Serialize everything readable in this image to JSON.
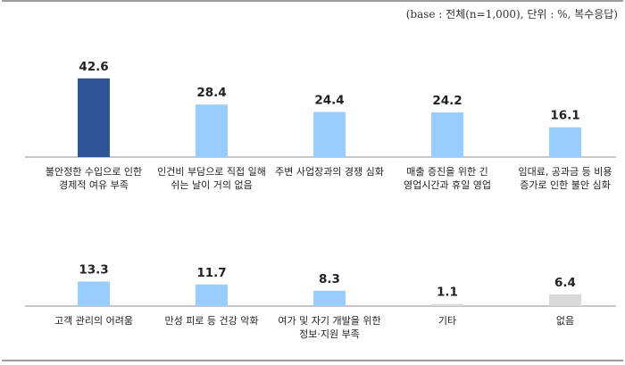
{
  "base_note": "(base : 전체(n=1,000), 단위 : %, 복수응답)",
  "colors": {
    "highlight": "#2f5597",
    "default": "#99ccff",
    "neutral": "#d9d9d9",
    "axis": "#8c8c8c",
    "frame": "#7f7f7f"
  },
  "chart_data": {
    "type": "bar",
    "title": "",
    "xlabel": "",
    "ylabel": "",
    "ylim": [
      0,
      50
    ],
    "grid": false,
    "legend": "none",
    "categories": [
      [
        "불안정한 수입으로 인한",
        "경제적 여유 부족"
      ],
      [
        "인건비 부담으로 직접 일해",
        "쉬는 날이 거의 없음"
      ],
      [
        "주변 사업장과의 경쟁 심화"
      ],
      [
        "매출 증진을 위한 긴",
        "영업시간과 휴일 영업"
      ],
      [
        "임대료, 공과금 등 비용",
        "증가로 인한 불안 심화"
      ],
      [
        "고객 관리의 어려움"
      ],
      [
        "만성 피로 등 건강 악화"
      ],
      [
        "여가 및 자기 개발을 위한",
        "정보·지원 부족"
      ],
      [
        "기타"
      ],
      [
        "없음"
      ]
    ],
    "values": [
      42.6,
      28.4,
      24.4,
      24.2,
      16.1,
      13.3,
      11.7,
      8.3,
      1.1,
      6.4
    ],
    "value_labels": [
      "42.6",
      "28.4",
      "24.4",
      "24.2",
      "16.1",
      "13.3",
      "11.7",
      "8.3",
      "1.1",
      "6.4"
    ],
    "bar_colors": [
      "highlight",
      "default",
      "default",
      "default",
      "default",
      "default",
      "default",
      "default",
      "neutral",
      "neutral"
    ]
  }
}
